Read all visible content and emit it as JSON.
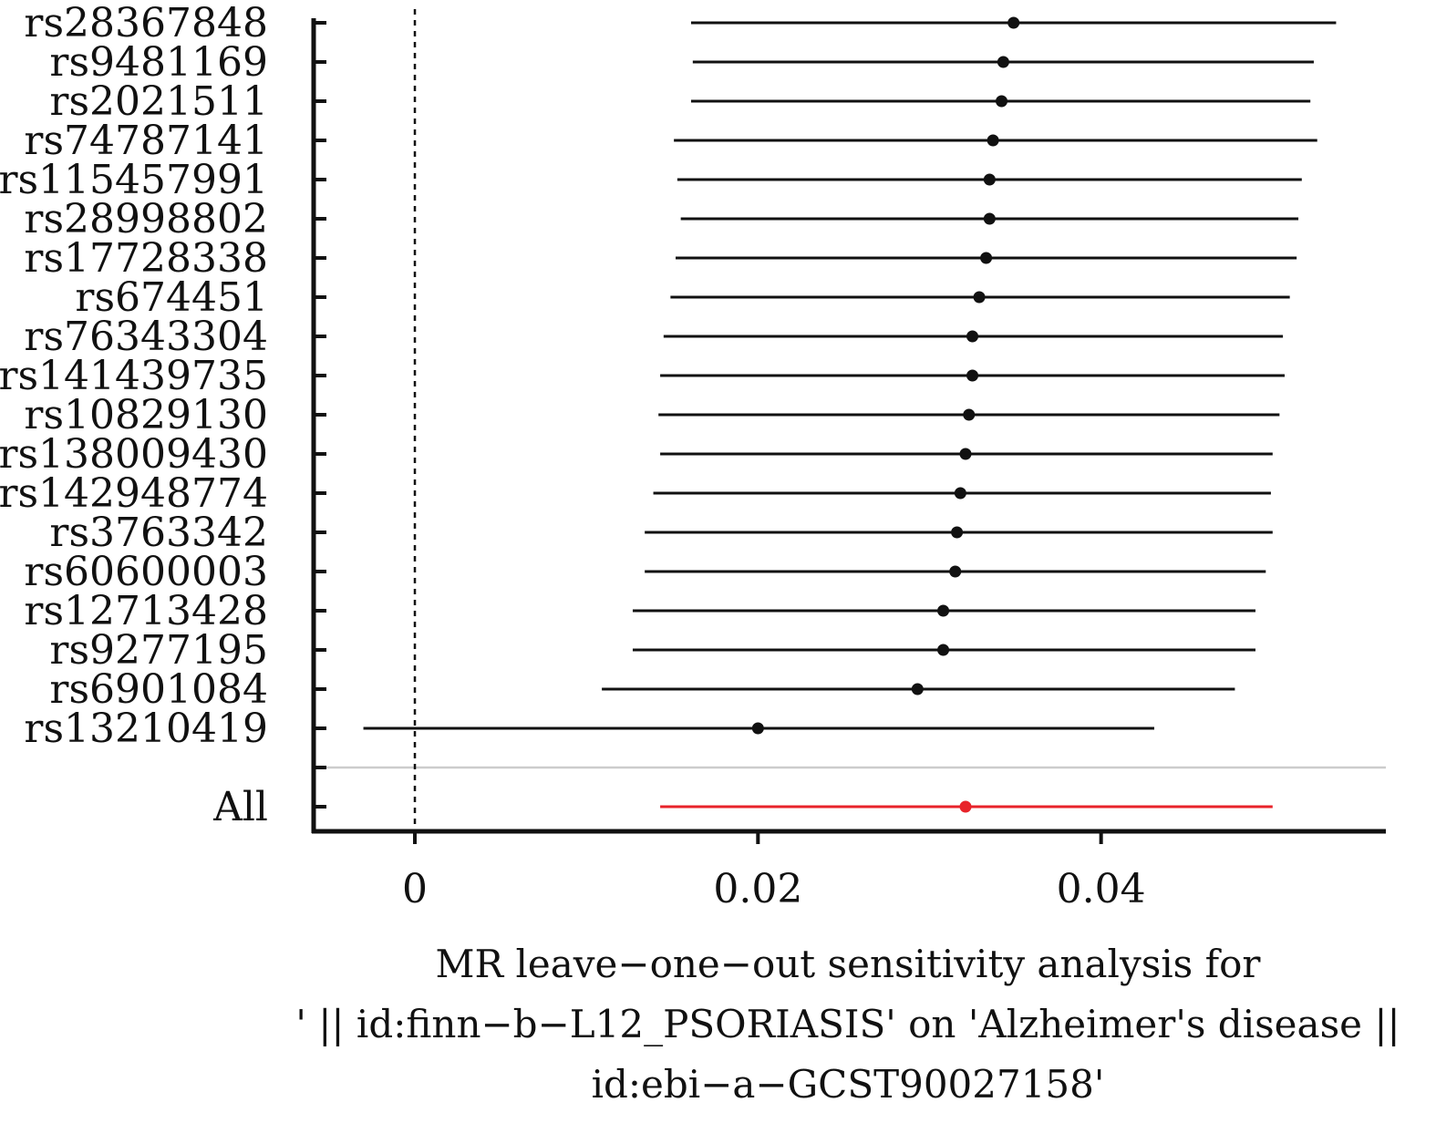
{
  "chart_data": {
    "type": "forest",
    "title": "",
    "xlabel_lines": [
      "MR leave−one−out sensitivity analysis for",
      "' || id:finn−b−L12_PSORIASIS' on 'Alzheimer's disease ||",
      "id:ebi−a−GCST90027158'"
    ],
    "xticks": [
      {
        "value": 0,
        "label": "0"
      },
      {
        "value": 0.02,
        "label": "0.02"
      },
      {
        "value": 0.04,
        "label": "0.04"
      }
    ],
    "xlim": [
      -0.0059,
      0.0566
    ],
    "reference_line": 0,
    "grid": false,
    "colors": {
      "snp": "#111111",
      "overall": "#e8232a",
      "separator": "#cccccc"
    },
    "rows": [
      {
        "label": "rs28367848",
        "b": 0.0349,
        "lo": 0.0161,
        "hi": 0.0537
      },
      {
        "label": "rs9481169",
        "b": 0.0343,
        "lo": 0.0162,
        "hi": 0.0524
      },
      {
        "label": "rs2021511",
        "b": 0.0342,
        "lo": 0.0161,
        "hi": 0.0522
      },
      {
        "label": "rs74787141",
        "b": 0.0337,
        "lo": 0.0151,
        "hi": 0.0526
      },
      {
        "label": "rs115457991",
        "b": 0.0335,
        "lo": 0.0153,
        "hi": 0.0517
      },
      {
        "label": "rs28998802",
        "b": 0.0335,
        "lo": 0.0155,
        "hi": 0.0515
      },
      {
        "label": "rs17728338",
        "b": 0.0333,
        "lo": 0.0152,
        "hi": 0.0514
      },
      {
        "label": "rs674451",
        "b": 0.0329,
        "lo": 0.0149,
        "hi": 0.051
      },
      {
        "label": "rs76343304",
        "b": 0.0325,
        "lo": 0.0145,
        "hi": 0.0506
      },
      {
        "label": "rs141439735",
        "b": 0.0325,
        "lo": 0.0143,
        "hi": 0.0507
      },
      {
        "label": "rs10829130",
        "b": 0.0323,
        "lo": 0.0142,
        "hi": 0.0504
      },
      {
        "label": "rs138009430",
        "b": 0.0321,
        "lo": 0.0143,
        "hi": 0.05
      },
      {
        "label": "rs142948774",
        "b": 0.0318,
        "lo": 0.0139,
        "hi": 0.0499
      },
      {
        "label": "rs3763342",
        "b": 0.0316,
        "lo": 0.0134,
        "hi": 0.05
      },
      {
        "label": "rs60600003",
        "b": 0.0315,
        "lo": 0.0134,
        "hi": 0.0496
      },
      {
        "label": "rs12713428",
        "b": 0.0308,
        "lo": 0.0127,
        "hi": 0.049
      },
      {
        "label": "rs9277195",
        "b": 0.0308,
        "lo": 0.0127,
        "hi": 0.049
      },
      {
        "label": "rs6901084",
        "b": 0.0293,
        "lo": 0.0109,
        "hi": 0.0478
      },
      {
        "label": "rs13210419",
        "b": 0.02,
        "lo": -0.003,
        "hi": 0.0431
      }
    ],
    "overall": {
      "label": "All",
      "b": 0.0321,
      "lo": 0.0143,
      "hi": 0.05
    }
  }
}
